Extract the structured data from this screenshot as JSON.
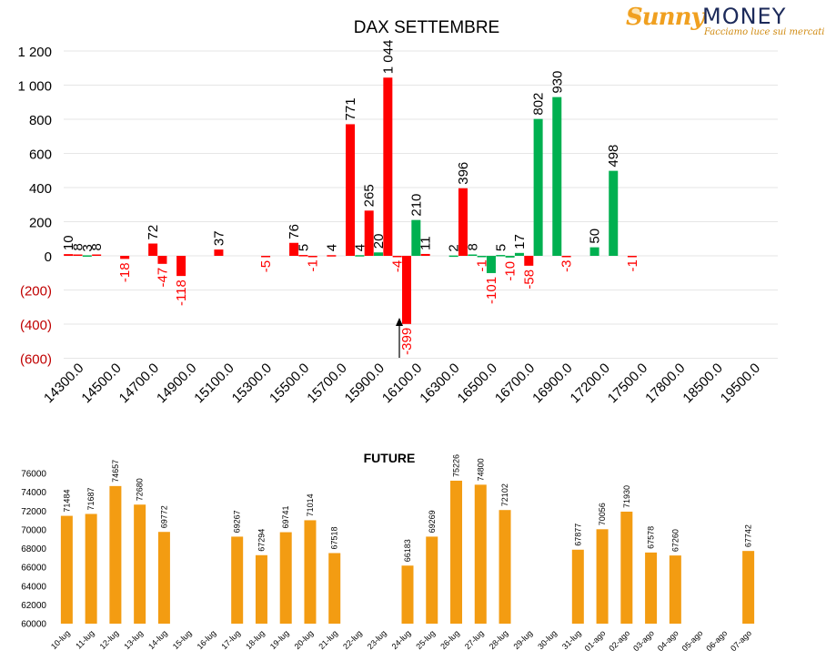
{
  "logo": {
    "brand_sunny": "Sunny",
    "brand_money": "MONEY",
    "tagline": "Facciamo luce sui mercati"
  },
  "colors": {
    "positive": "#00b050",
    "negative": "#ff0000",
    "future": "#f39c12",
    "grid": "#e6e6e6",
    "axis_text": "#000000",
    "negative_tick_text": "#c00000"
  },
  "chart_data": [
    {
      "type": "bar",
      "title": "DAX SETTEMBRE",
      "categories": [
        "14300.0",
        "14500.0",
        "14700.0",
        "14900.0",
        "15100.0",
        "15300.0",
        "15500.0",
        "15700.0",
        "15900.0",
        "16100.0",
        "16300.0",
        "16500.0",
        "16700.0",
        "16900.0",
        "17200.0",
        "17500.0",
        "17800.0",
        "18500.0",
        "19500.0"
      ],
      "y_ticks": [
        {
          "v": 1200,
          "label": "1 200"
        },
        {
          "v": 1000,
          "label": "1 000"
        },
        {
          "v": 800,
          "label": "800"
        },
        {
          "v": 600,
          "label": "600"
        },
        {
          "v": 400,
          "label": "400"
        },
        {
          "v": 200,
          "label": "200"
        },
        {
          "v": 0,
          "label": "0"
        },
        {
          "v": -200,
          "label": "(200)"
        },
        {
          "v": -400,
          "label": "(400)"
        },
        {
          "v": -600,
          "label": "(600)"
        }
      ],
      "ylim": [
        -600,
        1200
      ],
      "bars": [
        {
          "cat": 0,
          "slot": 0,
          "value": 10,
          "color": "negative",
          "label": "10"
        },
        {
          "cat": 0,
          "slot": 1,
          "value": 8,
          "color": "negative",
          "label": "8"
        },
        {
          "cat": 0,
          "slot": 2,
          "value": 3,
          "color": "positive",
          "label": "3"
        },
        {
          "cat": 0,
          "slot": 3,
          "value": 8,
          "color": "negative",
          "label": "8"
        },
        {
          "cat": 1,
          "slot": 2,
          "value": -18,
          "color": "negative",
          "label": "-18"
        },
        {
          "cat": 2,
          "slot": 1,
          "value": 72,
          "color": "negative",
          "label": "72"
        },
        {
          "cat": 2,
          "slot": 2,
          "value": -47,
          "color": "negative",
          "label": "-47"
        },
        {
          "cat": 3,
          "slot": 0,
          "value": -118,
          "color": "negative",
          "label": "-118"
        },
        {
          "cat": 4,
          "slot": 0,
          "value": 37,
          "color": "negative",
          "label": "37"
        },
        {
          "cat": 5,
          "slot": 1,
          "value": -5,
          "color": "negative",
          "label": "-5"
        },
        {
          "cat": 6,
          "slot": 0,
          "value": 76,
          "color": "negative",
          "label": "76"
        },
        {
          "cat": 6,
          "slot": 1,
          "value": 5,
          "color": "negative",
          "label": "5"
        },
        {
          "cat": 6,
          "slot": 2,
          "value": -1,
          "color": "negative",
          "label": "-1"
        },
        {
          "cat": 7,
          "slot": 0,
          "value": 4,
          "color": "negative",
          "label": "4"
        },
        {
          "cat": 7,
          "slot": 2,
          "value": 771,
          "color": "negative",
          "label": "771"
        },
        {
          "cat": 7,
          "slot": 3,
          "value": 4,
          "color": "positive",
          "label": "4"
        },
        {
          "cat": 8,
          "slot": 0,
          "value": 265,
          "color": "negative",
          "label": "265"
        },
        {
          "cat": 8,
          "slot": 1,
          "value": 20,
          "color": "positive",
          "label": "20"
        },
        {
          "cat": 8,
          "slot": 2,
          "value": 1044,
          "color": "negative",
          "label": "1 044"
        },
        {
          "cat": 8,
          "slot": 3,
          "value": -4,
          "color": "negative",
          "label": "-4"
        },
        {
          "cat": 9,
          "slot": 0,
          "value": -399,
          "color": "negative",
          "label": "-399"
        },
        {
          "cat": 9,
          "slot": 1,
          "value": 210,
          "color": "positive",
          "label": "210"
        },
        {
          "cat": 9,
          "slot": 2,
          "value": 11,
          "color": "negative",
          "label": "11"
        },
        {
          "cat": 10,
          "slot": 1,
          "value": 2,
          "color": "positive",
          "label": "2"
        },
        {
          "cat": 10,
          "slot": 2,
          "value": 396,
          "color": "negative",
          "label": "396"
        },
        {
          "cat": 10,
          "slot": 3,
          "value": 8,
          "color": "positive",
          "label": "8"
        },
        {
          "cat": 11,
          "slot": 0,
          "value": -1,
          "color": "positive",
          "label": "-1"
        },
        {
          "cat": 11,
          "slot": 1,
          "value": -101,
          "color": "positive",
          "label": "-101"
        },
        {
          "cat": 11,
          "slot": 2,
          "value": 5,
          "color": "positive",
          "label": "5"
        },
        {
          "cat": 11,
          "slot": 3,
          "value": -10,
          "color": "positive",
          "label": "-10"
        },
        {
          "cat": 12,
          "slot": 0,
          "value": 17,
          "color": "positive",
          "label": "17"
        },
        {
          "cat": 12,
          "slot": 1,
          "value": -58,
          "color": "negative",
          "label": "-58"
        },
        {
          "cat": 12,
          "slot": 2,
          "value": 802,
          "color": "positive",
          "label": "802"
        },
        {
          "cat": 13,
          "slot": 0,
          "value": 930,
          "color": "positive",
          "label": "930"
        },
        {
          "cat": 13,
          "slot": 1,
          "value": -3,
          "color": "negative",
          "label": "-3"
        },
        {
          "cat": 14,
          "slot": 0,
          "value": 50,
          "color": "positive",
          "label": "50"
        },
        {
          "cat": 14,
          "slot": 2,
          "value": 498,
          "color": "positive",
          "label": "498"
        },
        {
          "cat": 15,
          "slot": 0,
          "value": -1,
          "color": "negative",
          "label": "-1"
        }
      ],
      "annotation": {
        "type": "arrow",
        "at_cat": 9,
        "at_slot": 0
      }
    },
    {
      "type": "bar",
      "title": "FUTURE",
      "categories": [
        "10-lug",
        "11-lug",
        "12-lug",
        "13-lug",
        "14-lug",
        "15-lug",
        "16-lug",
        "17-lug",
        "18-lug",
        "19-lug",
        "20-lug",
        "21-lug",
        "22-lug",
        "23-lug",
        "24-lug",
        "25-lug",
        "26-lug",
        "27-lug",
        "28-lug",
        "29-lug",
        "30-lug",
        "31-lug",
        "01-ago",
        "02-ago",
        "03-ago",
        "04-ago",
        "05-ago",
        "06-ago",
        "07-ago"
      ],
      "values": [
        71484,
        71687,
        74657,
        72680,
        69772,
        null,
        null,
        69267,
        67294,
        69741,
        71014,
        67518,
        null,
        null,
        66183,
        69269,
        75226,
        74800,
        72102,
        null,
        null,
        67877,
        70056,
        71930,
        67578,
        67260,
        null,
        null,
        67742
      ],
      "y_ticks": [
        60000,
        62000,
        64000,
        66000,
        68000,
        70000,
        72000,
        74000,
        76000
      ],
      "ylim": [
        60000,
        76000
      ]
    }
  ]
}
